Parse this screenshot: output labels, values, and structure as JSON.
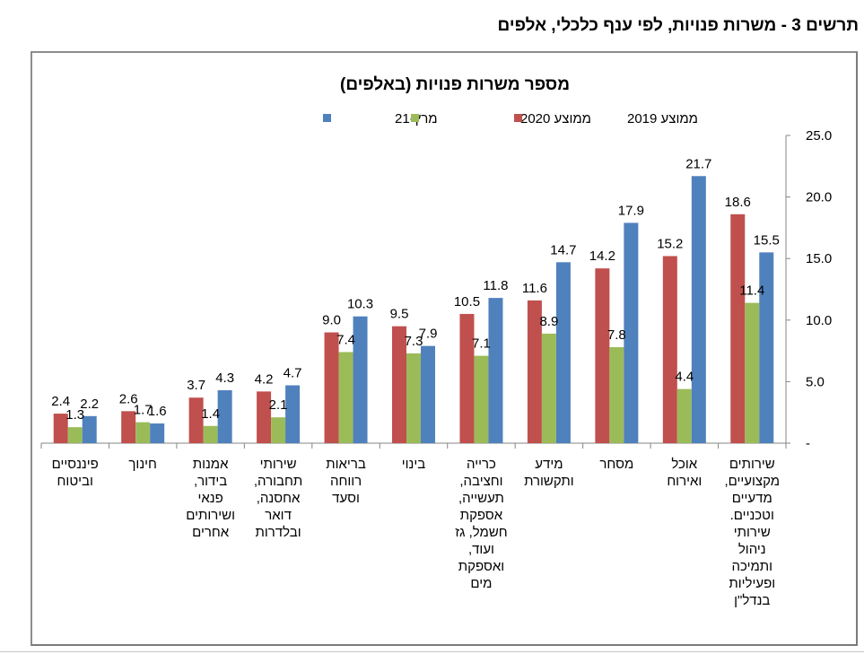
{
  "page": {
    "title": "תרשים 3 - משרות פנויות, לפי ענף כלכלי, אלפים"
  },
  "colors": {
    "series_2019": "#c0504d",
    "series_2020": "#9bbb59",
    "series_mar21": "#4f81bd",
    "axis": "#868686",
    "text": "#000000"
  },
  "chart_data": {
    "type": "bar",
    "title": "מספר משרות פנויות (באלפים)",
    "xlabel": "",
    "ylabel": "",
    "ylim": [
      0,
      25
    ],
    "yticks": [
      0,
      5,
      10,
      15,
      20,
      25
    ],
    "ytick_labels": [
      "-",
      "5.0",
      "10.0",
      "15.0",
      "20.0",
      "25.0"
    ],
    "y_axis_side": "right",
    "grid": false,
    "legend_position": "top",
    "categories": [
      "פיננסיים וביטוח",
      "חינוך",
      "אמנות בידור, פנאי ושירותים אחרים",
      "שירותי תחבורה, אחסנה, דואר ובלדרות",
      "בריאות רווחה וסעד",
      "בינוי",
      "כרייה וחציבה, תעשייה, אספקת חשמל, גז ועוד, ואספקת מים",
      "מידע ותקשורת",
      "מסחר",
      "אוכל ואירוח",
      "שירותים מקצועיים, מדעיים וטכניים. שירותי ניהול ותמיכה ופעיליות בנדל\"ן"
    ],
    "category_lines": [
      "פיננסיים\nוביטוח",
      "חינוך",
      "אמנות\nבידור,\nפנאי\nושירותים\nאחרים",
      "שירותי\nתחבורה,\nאחסנה,\nדואר\nובלדרות",
      "בריאות\nרווחה\nוסעד",
      "בינוי",
      "כרייה\nוחציבה,\nתעשייה,\nאספקת\nחשמל, גז\nועוד,\nואספקת\nמים",
      "מידע\nותקשורת",
      "מסחר",
      "אוכל\nואירוח",
      "שירותים\nמקצועיים,\nמדעיים\nוטכניים.\nשירותי\nניהול\nותמיכה\nופעיליות\nבנדל\"ן"
    ],
    "series": [
      {
        "name": "ממוצע 2019",
        "color": "#c0504d",
        "values": [
          2.4,
          2.6,
          3.7,
          4.2,
          9.0,
          9.5,
          10.5,
          11.6,
          14.2,
          15.2,
          18.6
        ]
      },
      {
        "name": "ממוצע 2020",
        "color": "#9bbb59",
        "values": [
          1.3,
          1.7,
          1.4,
          2.1,
          7.4,
          7.3,
          7.1,
          8.9,
          7.8,
          4.4,
          11.4
        ]
      },
      {
        "name": "מרץ-21",
        "color": "#4f81bd",
        "values": [
          2.2,
          1.6,
          4.3,
          4.7,
          10.3,
          7.9,
          11.8,
          14.7,
          17.9,
          21.7,
          15.5
        ]
      }
    ],
    "legend": [
      "מרץ-21",
      "ממוצע 2020",
      "ממוצע 2019"
    ]
  }
}
